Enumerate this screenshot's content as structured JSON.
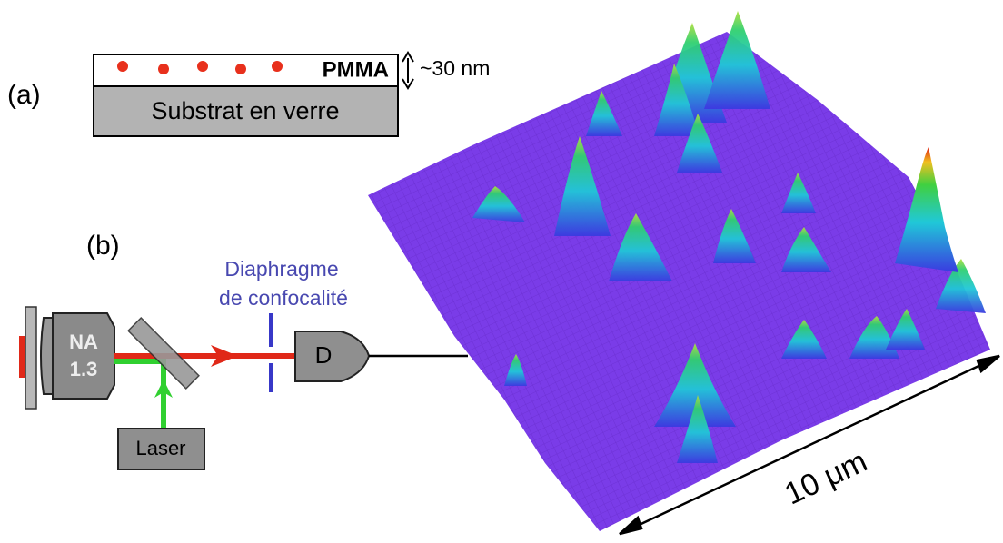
{
  "panel_a": {
    "label": "(a)",
    "layer": "PMMA",
    "thickness": "~30 nm",
    "substrate": "Substrat en verre"
  },
  "panel_b": {
    "label": "(b)",
    "pinhole": [
      "Diaphragme",
      "de confocalité"
    ],
    "objective": [
      "NA",
      "1.3"
    ],
    "detector": "D",
    "laser": "Laser"
  },
  "scale": "10 μm"
}
